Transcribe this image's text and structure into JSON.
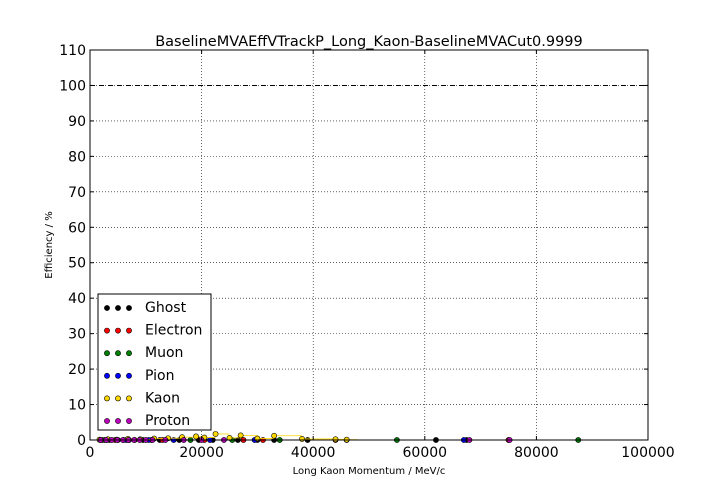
{
  "chart_data": {
    "type": "scatter",
    "title": "BaselineMVAEffVTrackP_Long_Kaon-BaselineMVACut0.9999",
    "xlabel": "Long Kaon Momentum / MeV/c",
    "ylabel": "Efficiency / %",
    "xlim": [
      0,
      100000
    ],
    "ylim": [
      0,
      110
    ],
    "xticks": [
      0,
      20000,
      40000,
      60000,
      80000,
      100000
    ],
    "xtick_labels": [
      "0",
      "20000",
      "40000",
      "60000",
      "80000",
      "100000"
    ],
    "yticks": [
      0,
      10,
      20,
      30,
      40,
      50,
      60,
      70,
      80,
      90,
      100,
      110
    ],
    "ytick_labels": [
      "0",
      "10",
      "20",
      "30",
      "40",
      "50",
      "60",
      "70",
      "80",
      "90",
      "100",
      "110"
    ],
    "grid": true,
    "reference_line_y": 100,
    "legend_position": "lower-left",
    "series": [
      {
        "name": "Ghost",
        "color": "#000000",
        "points": [
          {
            "x": 1800,
            "y": 0
          },
          {
            "x": 3500,
            "y": 0
          },
          {
            "x": 5000,
            "y": 0
          },
          {
            "x": 7000,
            "y": 0
          },
          {
            "x": 9500,
            "y": 0
          },
          {
            "x": 12500,
            "y": 0
          },
          {
            "x": 16000,
            "y": 0
          },
          {
            "x": 19500,
            "y": 0
          },
          {
            "x": 22000,
            "y": 0
          },
          {
            "x": 26500,
            "y": 0
          },
          {
            "x": 30000,
            "y": 0
          },
          {
            "x": 33000,
            "y": 0
          },
          {
            "x": 39000,
            "y": 0
          },
          {
            "x": 46000,
            "y": 0
          },
          {
            "x": 62000,
            "y": 0
          },
          {
            "x": 67500,
            "y": 0
          }
        ]
      },
      {
        "name": "Electron",
        "color": "#ff0000",
        "points": [
          {
            "x": 2200,
            "y": 0
          },
          {
            "x": 4500,
            "y": 0
          },
          {
            "x": 8000,
            "y": 0
          },
          {
            "x": 13000,
            "y": 0
          },
          {
            "x": 20500,
            "y": 0
          },
          {
            "x": 27500,
            "y": 0
          },
          {
            "x": 31000,
            "y": 0
          },
          {
            "x": 44000,
            "y": 0
          },
          {
            "x": 75000,
            "y": 0
          }
        ]
      },
      {
        "name": "Muon",
        "color": "#008000",
        "points": [
          {
            "x": 2600,
            "y": 0
          },
          {
            "x": 6000,
            "y": 0
          },
          {
            "x": 11000,
            "y": 0
          },
          {
            "x": 18000,
            "y": 0
          },
          {
            "x": 25500,
            "y": 0
          },
          {
            "x": 34000,
            "y": 0
          },
          {
            "x": 55000,
            "y": 0
          },
          {
            "x": 87500,
            "y": 0
          }
        ]
      },
      {
        "name": "Pion",
        "color": "#0000ff",
        "points": [
          {
            "x": 3000,
            "y": 0
          },
          {
            "x": 6500,
            "y": 0
          },
          {
            "x": 10500,
            "y": 0
          },
          {
            "x": 15000,
            "y": 0
          },
          {
            "x": 21500,
            "y": 0
          },
          {
            "x": 29500,
            "y": 0
          },
          {
            "x": 67000,
            "y": 0
          }
        ]
      },
      {
        "name": "Kaon",
        "color": "#ffd700",
        "points": [
          {
            "x": 1700,
            "y": 0.1
          },
          {
            "x": 3200,
            "y": 0.2
          },
          {
            "x": 4800,
            "y": 0.1
          },
          {
            "x": 6800,
            "y": 0.3
          },
          {
            "x": 9000,
            "y": 0.2
          },
          {
            "x": 11500,
            "y": 0.4
          },
          {
            "x": 14000,
            "y": 0.5
          },
          {
            "x": 16500,
            "y": 0.8
          },
          {
            "x": 19000,
            "y": 1.0
          },
          {
            "x": 20500,
            "y": 0.7
          },
          {
            "x": 22500,
            "y": 1.7
          },
          {
            "x": 25000,
            "y": 0.6
          },
          {
            "x": 27000,
            "y": 1.3
          },
          {
            "x": 30000,
            "y": 0.4
          },
          {
            "x": 33000,
            "y": 1.2
          },
          {
            "x": 38000,
            "y": 0.3
          },
          {
            "x": 44000,
            "y": 0.2
          },
          {
            "x": 46000,
            "y": 0.1
          }
        ]
      },
      {
        "name": "Proton",
        "color": "#bf00bf",
        "points": [
          {
            "x": 1900,
            "y": 0
          },
          {
            "x": 2900,
            "y": 0
          },
          {
            "x": 3900,
            "y": 0
          },
          {
            "x": 4900,
            "y": 0
          },
          {
            "x": 5900,
            "y": 0
          },
          {
            "x": 6900,
            "y": 0
          },
          {
            "x": 7900,
            "y": 0
          },
          {
            "x": 8900,
            "y": 0
          },
          {
            "x": 10000,
            "y": 0
          },
          {
            "x": 11200,
            "y": 0
          },
          {
            "x": 13500,
            "y": 0
          },
          {
            "x": 16800,
            "y": 0
          },
          {
            "x": 20000,
            "y": 0
          },
          {
            "x": 24000,
            "y": 0
          },
          {
            "x": 68000,
            "y": 0
          },
          {
            "x": 75200,
            "y": 0
          }
        ]
      }
    ]
  }
}
